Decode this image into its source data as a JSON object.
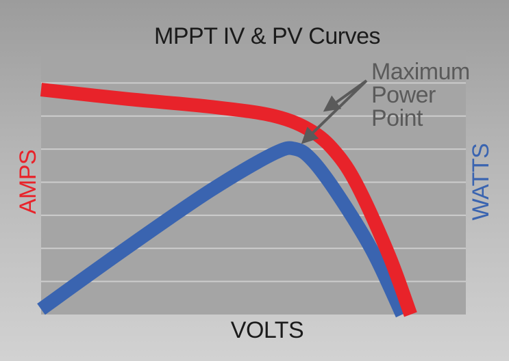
{
  "chart_data": {
    "type": "line",
    "title": "MPPT IV & PV Curves",
    "xlabel": "VOLTS",
    "ylabel_left": "AMPS",
    "ylabel_right": "WATTS",
    "xlim": [
      0,
      100
    ],
    "ylim": [
      0,
      100
    ],
    "grid": true,
    "gridlines": 8,
    "series": [
      {
        "name": "AMPS",
        "color": "#e8232a",
        "points": [
          [
            0,
            85
          ],
          [
            20,
            81.5
          ],
          [
            40,
            78.5
          ],
          [
            55,
            75
          ],
          [
            64,
            69
          ],
          [
            70,
            60
          ],
          [
            75,
            47
          ],
          [
            82,
            22
          ],
          [
            87,
            0
          ]
        ]
      },
      {
        "name": "WATTS",
        "color": "#3a64b0",
        "points": [
          [
            0,
            2
          ],
          [
            20,
            25
          ],
          [
            40,
            47
          ],
          [
            55,
            61
          ],
          [
            60,
            62.5
          ],
          [
            64,
            58
          ],
          [
            70,
            45
          ],
          [
            78,
            24
          ],
          [
            85,
            0
          ]
        ]
      }
    ],
    "annotations": [
      {
        "lines": [
          "Maximum",
          "Power",
          "Point"
        ],
        "points_to": [
          [
            65,
            75
          ],
          [
            60,
            62.5
          ]
        ]
      }
    ]
  }
}
